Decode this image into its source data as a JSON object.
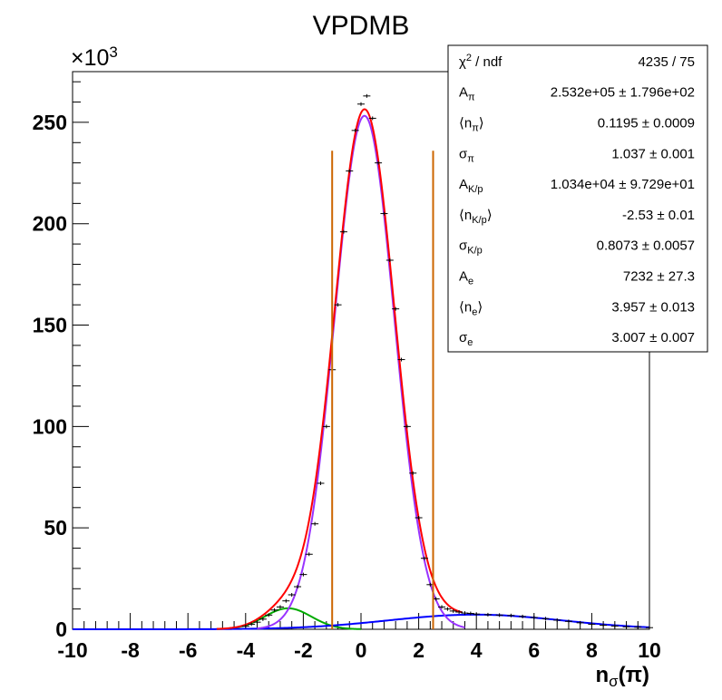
{
  "chart_data": {
    "type": "line",
    "title": "VPDMB",
    "xlabel": {
      "main": "n",
      "sub": "σ",
      "tail": "(π)"
    },
    "y_multiplier": {
      "main": "×10",
      "sup": "3"
    },
    "xlim": [
      -10,
      10
    ],
    "ylim": [
      0,
      275
    ],
    "x_ticks": [
      -10,
      -8,
      -6,
      -4,
      -2,
      0,
      2,
      4,
      6,
      8,
      10
    ],
    "y_ticks": [
      0,
      50,
      100,
      150,
      200,
      250
    ],
    "x_tick_labels": [
      "-10",
      "-8",
      "-6",
      "-4",
      "-2",
      "0",
      "2",
      "4",
      "6",
      "8",
      "10"
    ],
    "y_tick_labels": [
      "0",
      "50",
      "100",
      "150",
      "200",
      "250"
    ],
    "fit": {
      "pion": {
        "amplitude": 253.2,
        "mean": 0.1195,
        "sigma": 1.037
      },
      "kaon_proton": {
        "amplitude": 10.34,
        "mean": -2.53,
        "sigma": 0.8073
      },
      "electron": {
        "amplitude": 7.232,
        "mean": 3.957,
        "sigma": 3.007
      }
    },
    "series": [
      {
        "color": "#ff0000",
        "component": "total"
      },
      {
        "color": "#9933ff",
        "component": "pion"
      },
      {
        "color": "#00aa00",
        "component": "kaon_proton"
      },
      {
        "color": "#0000ff",
        "component": "electron"
      }
    ],
    "data_points": {
      "x": [
        -4.0,
        -3.8,
        -3.6,
        -3.4,
        -3.2,
        -3.0,
        -2.8,
        -2.6,
        -2.4,
        -2.2,
        -2.0,
        -1.8,
        -1.6,
        -1.4,
        -1.2,
        -1.0,
        -0.8,
        -0.6,
        -0.4,
        -0.2,
        0.0,
        0.2,
        0.4,
        0.6,
        0.8,
        1.0,
        1.2,
        1.4,
        1.6,
        1.8,
        2.0,
        2.2,
        2.4,
        2.6,
        2.8,
        3.0,
        3.2,
        3.4,
        3.6,
        3.8,
        4.0,
        4.4,
        4.8,
        5.2,
        5.6,
        6.0,
        6.4,
        6.8,
        7.2,
        7.6,
        8.0,
        8.4,
        8.8,
        9.2,
        9.6,
        10.0
      ],
      "y": [
        1.5,
        2.5,
        3.5,
        5,
        7,
        9.5,
        11,
        14,
        17,
        21,
        27,
        37,
        52,
        72,
        100,
        128,
        160,
        196,
        226,
        246,
        259,
        263,
        252,
        230,
        205,
        182,
        158,
        133,
        100,
        77,
        55,
        35,
        22,
        15,
        11,
        10,
        9,
        8.5,
        8,
        7.8,
        7.5,
        7.2,
        7,
        6.8,
        6.3,
        5.8,
        5.2,
        4.5,
        3.9,
        3.2,
        2.5,
        2,
        1.6,
        1.2,
        1,
        0.8
      ]
    },
    "cut_lines": [
      -1.0,
      2.5
    ],
    "cut_line_top": 236,
    "cut_line_color": "#cc6600",
    "stats": [
      {
        "label": "χ",
        "label_sup": "2",
        "label_tail": " / ndf",
        "value": "4235 / 75"
      },
      {
        "label": "A",
        "label_sub": "π",
        "value": "2.532e+05 ± 1.796e+02"
      },
      {
        "label": "⟨n",
        "label_sub": "π",
        "label_tail": "⟩",
        "value": "0.1195 ± 0.0009"
      },
      {
        "label": "σ",
        "label_sub": "π",
        "value": "1.037 ± 0.001"
      },
      {
        "label": "A",
        "label_sub": "K/p",
        "value": "1.034e+04 ± 9.729e+01"
      },
      {
        "label": "⟨n",
        "label_sub": "K/p",
        "label_tail": "⟩",
        "value": "-2.53 ± 0.01"
      },
      {
        "label": "σ",
        "label_sub": "K/p",
        "value": "0.8073 ± 0.0057"
      },
      {
        "label": "A",
        "label_sub": "e",
        "value": "7232 ± 27.3"
      },
      {
        "label": "⟨n",
        "label_sub": "e",
        "label_tail": "⟩",
        "value": "3.957 ± 0.013"
      },
      {
        "label": "σ",
        "label_sub": "e",
        "value": "3.007 ± 0.007"
      }
    ]
  }
}
